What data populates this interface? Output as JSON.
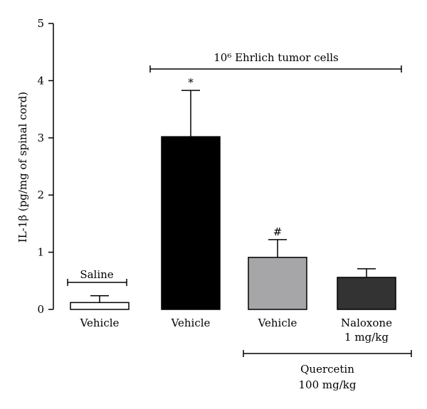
{
  "chart_data": {
    "type": "bar",
    "categories": [
      "Vehicle",
      "Vehicle",
      "Vehicle",
      "Naloxone\n1 mg/kg"
    ],
    "values": [
      0.12,
      3.02,
      0.91,
      0.56
    ],
    "errors": [
      0.12,
      0.81,
      0.31,
      0.15
    ],
    "bar_colors": [
      "#ffffff",
      "#000000",
      "#a6a6a8",
      "#333333"
    ],
    "significance": [
      "",
      "*",
      "#",
      ""
    ],
    "ylabel": "IL-1β (pg/mg of spinal cord)",
    "ylim": [
      0,
      5
    ],
    "yticks": [
      "0",
      "1",
      "2",
      "3",
      "4",
      "5"
    ],
    "annotations": {
      "saline": "Saline",
      "tumor": "10⁶ Ehrlich tumor cells",
      "quercetin_line1": "Quercetin",
      "quercetin_line2": "100 mg/kg"
    },
    "grid": false,
    "legend": "none"
  }
}
